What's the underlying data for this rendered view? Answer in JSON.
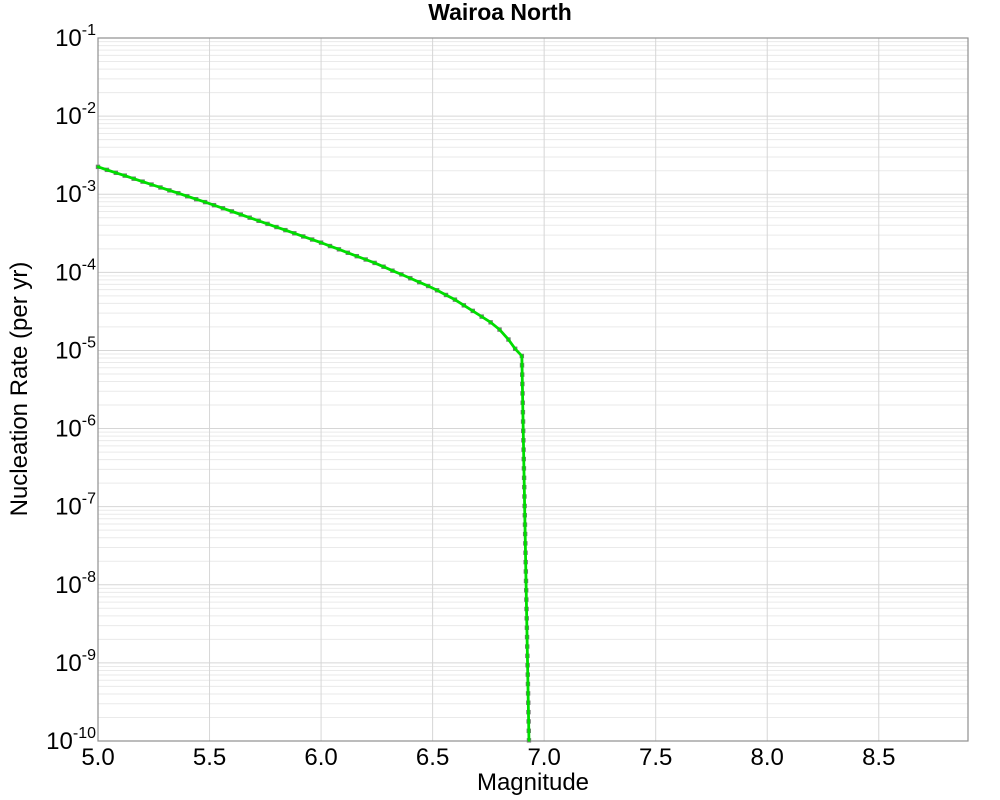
{
  "window": {
    "title": "Wairoa North"
  },
  "colors": {
    "background": "#ffffff",
    "plot_background": "#ffffff",
    "border": "#8f8f8f",
    "grid_major": "#d6d6d6",
    "grid_minor": "#eaeaea",
    "text": "#000000"
  },
  "chart_data": {
    "type": "line",
    "title": "Wairoa North",
    "xlabel": "Magnitude",
    "ylabel": "Nucleation Rate (per yr)",
    "legend": "none",
    "grid": {
      "major": true,
      "minor_log_y": true
    },
    "x_axis": {
      "min": 5.0,
      "max": 8.9,
      "scale": "linear",
      "ticks": [
        5.0,
        5.5,
        6.0,
        6.5,
        7.0,
        7.5,
        8.0,
        8.5
      ],
      "tick_labels": [
        "5.0",
        "5.5",
        "6.0",
        "6.5",
        "7.0",
        "7.5",
        "8.0",
        "8.5"
      ]
    },
    "y_axis": {
      "scale": "log",
      "min_exp": -10,
      "max_exp": -1,
      "tick_base": "10",
      "tick_exponents": [
        -1,
        -2,
        -3,
        -4,
        -5,
        -6,
        -7,
        -8,
        -9,
        -10
      ]
    },
    "series": [
      {
        "name": "nucleation-rate-curve",
        "line_color": "#00dd00",
        "line_width": 2.8,
        "marker": "square",
        "marker_color": "#777777",
        "marker_size": 4.4,
        "description": "Incremental nucleation rate vs magnitude; power-law decay from ~2.2e-3/yr at M5.0 tapering to ~8.5e-6/yr at M6.9, then near-vertical cutoff dropping below 1e-10/yr by M~6.93",
        "points": [
          [
            5.0,
            0.00224
          ],
          [
            5.04,
            0.00205
          ],
          [
            5.08,
            0.00188
          ],
          [
            5.12,
            0.00173
          ],
          [
            5.16,
            0.00158
          ],
          [
            5.2,
            0.00145
          ],
          [
            5.24,
            0.00133
          ],
          [
            5.28,
            0.00122
          ],
          [
            5.32,
            0.00112
          ],
          [
            5.36,
            0.00103
          ],
          [
            5.4,
            0.000942
          ],
          [
            5.44,
            0.000863
          ],
          [
            5.48,
            0.000793
          ],
          [
            5.52,
            0.000724
          ],
          [
            5.56,
            0.000661
          ],
          [
            5.6,
            0.000603
          ],
          [
            5.64,
            0.00055
          ],
          [
            5.68,
            0.000501
          ],
          [
            5.72,
            0.000457
          ],
          [
            5.76,
            0.000417
          ],
          [
            5.8,
            0.00038
          ],
          [
            5.84,
            0.000347
          ],
          [
            5.88,
            0.000316
          ],
          [
            5.92,
            0.000288
          ],
          [
            5.96,
            0.000263
          ],
          [
            6.0,
            0.00024
          ],
          [
            6.04,
            0.000217
          ],
          [
            6.08,
            0.000197
          ],
          [
            6.12,
            0.000178
          ],
          [
            6.16,
            0.000161
          ],
          [
            6.2,
            0.000146
          ],
          [
            6.24,
            0.000132
          ],
          [
            6.28,
            0.000118
          ],
          [
            6.32,
            0.000105
          ],
          [
            6.36,
            9.42e-05
          ],
          [
            6.4,
            8.4e-05
          ],
          [
            6.44,
            7.48e-05
          ],
          [
            6.48,
            6.68e-05
          ],
          [
            6.52,
            5.89e-05
          ],
          [
            6.56,
            5.13e-05
          ],
          [
            6.6,
            4.47e-05
          ],
          [
            6.64,
            3.78e-05
          ],
          [
            6.68,
            3.21e-05
          ],
          [
            6.72,
            2.71e-05
          ],
          [
            6.76,
            2.29e-05
          ],
          [
            6.8,
            1.85e-05
          ],
          [
            6.84,
            1.38e-05
          ],
          [
            6.87,
            1.05e-05
          ],
          [
            6.9,
            8.5e-06
          ],
          [
            6.9008,
            6.46e-06
          ],
          [
            6.9016,
            4.9e-06
          ],
          [
            6.9023,
            3.72e-06
          ],
          [
            6.9031,
            2.82e-06
          ],
          [
            6.9039,
            2.14e-06
          ],
          [
            6.9047,
            1.62e-06
          ],
          [
            6.9055,
            1.23e-06
          ],
          [
            6.9062,
            9.33e-07
          ],
          [
            6.907,
            7.08e-07
          ],
          [
            6.9078,
            5.37e-07
          ],
          [
            6.9086,
            4.07e-07
          ],
          [
            6.9093,
            3.09e-07
          ],
          [
            6.9101,
            2.34e-07
          ],
          [
            6.9109,
            1.78e-07
          ],
          [
            6.9117,
            1.35e-07
          ],
          [
            6.9125,
            1.02e-07
          ],
          [
            6.9132,
            7.76e-08
          ],
          [
            6.914,
            5.89e-08
          ],
          [
            6.9148,
            4.47e-08
          ],
          [
            6.9156,
            3.39e-08
          ],
          [
            6.9164,
            2.57e-08
          ],
          [
            6.9171,
            1.95e-08
          ],
          [
            6.9179,
            1.48e-08
          ],
          [
            6.9187,
            1.12e-08
          ],
          [
            6.9195,
            8.51e-09
          ],
          [
            6.9202,
            6.46e-09
          ],
          [
            6.921,
            4.9e-09
          ],
          [
            6.9218,
            3.72e-09
          ],
          [
            6.9226,
            2.82e-09
          ],
          [
            6.9234,
            2.14e-09
          ],
          [
            6.9241,
            1.62e-09
          ],
          [
            6.9249,
            1.23e-09
          ],
          [
            6.9257,
            9.33e-10
          ],
          [
            6.9265,
            7.08e-10
          ],
          [
            6.9273,
            5.37e-10
          ],
          [
            6.928,
            4.07e-10
          ],
          [
            6.9288,
            3.09e-10
          ],
          [
            6.9296,
            2.34e-10
          ],
          [
            6.9304,
            1.78e-10
          ],
          [
            6.9311,
            1.35e-10
          ],
          [
            6.9319,
            1.02e-10
          ]
        ]
      }
    ]
  }
}
